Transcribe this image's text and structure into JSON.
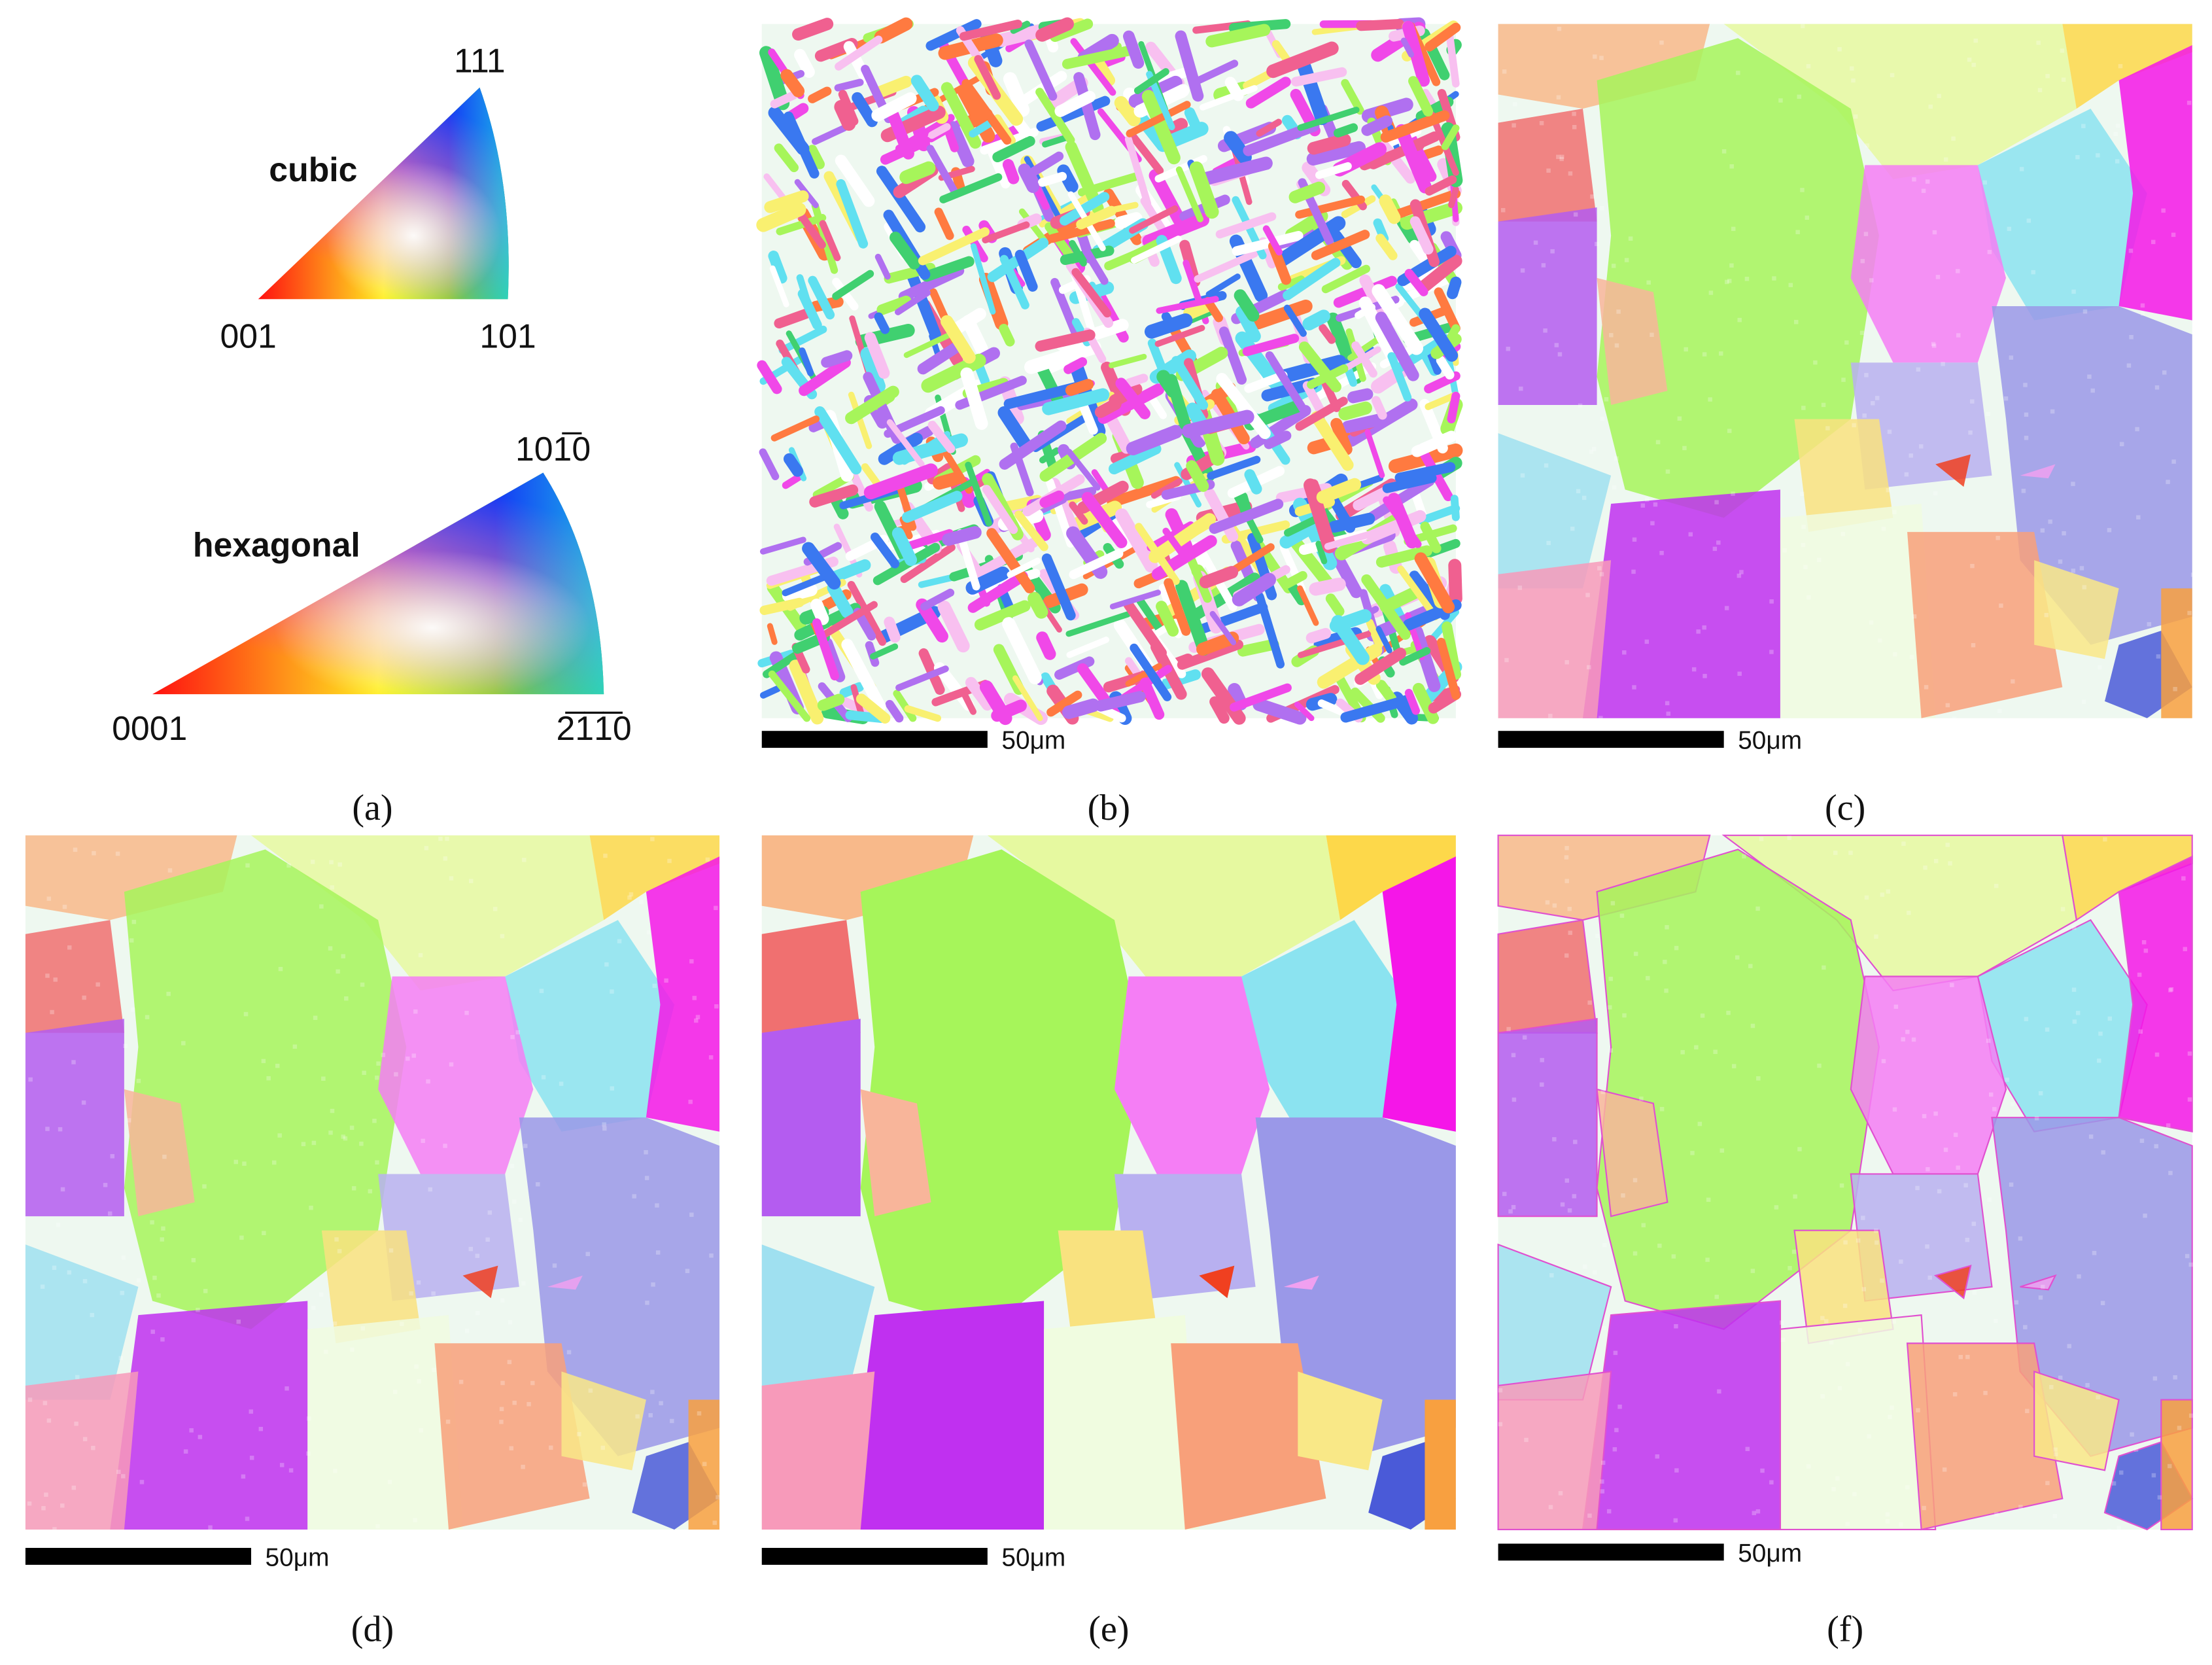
{
  "panels": [
    {
      "caption": "(a)",
      "legends": [
        {
          "title": "cubic",
          "corners": [
            "001",
            "101",
            "111"
          ]
        },
        {
          "title": "hexagonal",
          "corners": [
            "0001",
            "2̅​1̅1̅0",
            "101̅0"
          ]
        }
      ]
    },
    {
      "caption": "(b)",
      "scale_bar": "50μm"
    },
    {
      "caption": "(c)",
      "scale_bar": "50μm"
    },
    {
      "caption": "(d)",
      "scale_bar": "50μm"
    },
    {
      "caption": "(e)",
      "scale_bar": "50μm"
    },
    {
      "caption": "(f)",
      "scale_bar": "50μm"
    }
  ]
}
